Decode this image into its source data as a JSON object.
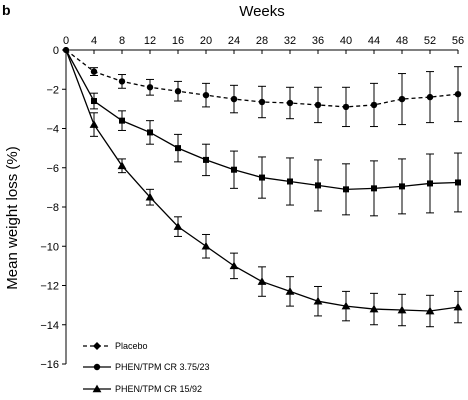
{
  "chart_data": {
    "type": "line",
    "panel_label": "b",
    "xlabel": "Weeks",
    "ylabel": "Mean weight loss (%)",
    "x_axis_position": "top",
    "xlim": [
      0,
      56
    ],
    "ylim": [
      -16,
      0
    ],
    "x_ticks": [
      0,
      4,
      8,
      12,
      16,
      20,
      24,
      28,
      32,
      36,
      40,
      44,
      48,
      52,
      56
    ],
    "y_ticks": [
      0,
      -2,
      -4,
      -6,
      -8,
      -10,
      -12,
      -14,
      -16
    ],
    "x": [
      0,
      4,
      8,
      12,
      16,
      20,
      24,
      28,
      32,
      36,
      40,
      44,
      48,
      52,
      56
    ],
    "grid": false,
    "legend_position": "bottom-left",
    "series": [
      {
        "name": "Placebo",
        "marker": "diamond",
        "line_style": "dashed",
        "values": [
          0,
          -1.1,
          -1.6,
          -1.9,
          -2.1,
          -2.3,
          -2.5,
          -2.65,
          -2.7,
          -2.8,
          -2.9,
          -2.8,
          -2.5,
          -2.4,
          -2.25
        ],
        "errors": [
          0,
          0.2,
          0.35,
          0.4,
          0.5,
          0.6,
          0.7,
          0.8,
          0.8,
          0.9,
          1.0,
          1.1,
          1.3,
          1.3,
          1.4
        ]
      },
      {
        "name": "PHEN/TPM CR 3.75/23",
        "marker": "circle",
        "line_style": "solid",
        "values": [
          0,
          -2.6,
          -3.6,
          -4.2,
          -5.0,
          -5.6,
          -6.1,
          -6.5,
          -6.7,
          -6.9,
          -7.1,
          -7.05,
          -6.95,
          -6.8,
          -6.75
        ],
        "errors": [
          0,
          0.4,
          0.5,
          0.6,
          0.7,
          0.8,
          0.95,
          1.05,
          1.2,
          1.3,
          1.3,
          1.4,
          1.4,
          1.5,
          1.5
        ]
      },
      {
        "name": "PHEN/TPM CR 15/92",
        "marker": "triangle",
        "line_style": "solid",
        "values": [
          0,
          -3.8,
          -5.9,
          -7.5,
          -9.0,
          -10.0,
          -11.0,
          -11.8,
          -12.3,
          -12.8,
          -13.05,
          -13.2,
          -13.25,
          -13.3,
          -13.1
        ],
        "errors": [
          0,
          0.6,
          0.35,
          0.4,
          0.5,
          0.6,
          0.65,
          0.75,
          0.75,
          0.75,
          0.75,
          0.8,
          0.8,
          0.8,
          0.8
        ]
      }
    ]
  }
}
